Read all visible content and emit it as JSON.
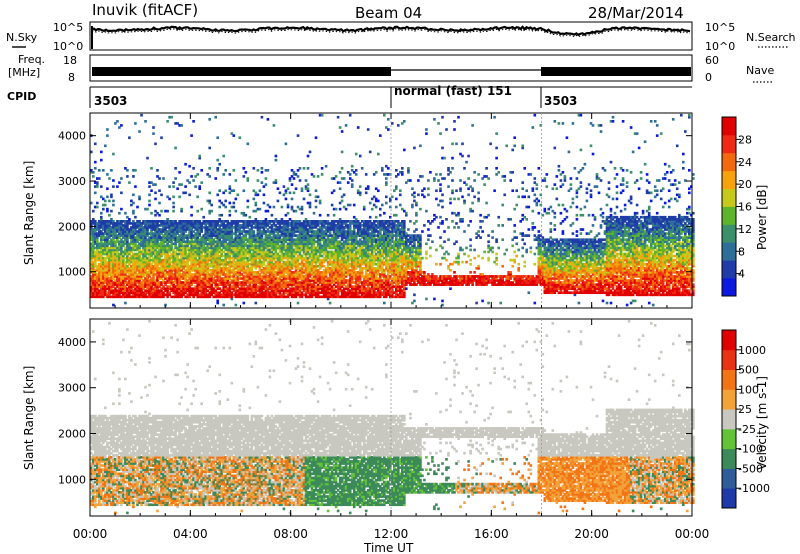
{
  "header": {
    "title": "Inuvik (fitACF)",
    "beam": "Beam 04",
    "date": "28/Mar/2014"
  },
  "top_panels": {
    "nsky_label": "N.Sky",
    "nsky_ticks": [
      "10^5",
      "10^0"
    ],
    "nsearch_label": "N.Search",
    "freq_label_1": "Freq.",
    "freq_label_2": "[MHz]",
    "freq_ticks": [
      "18",
      "8"
    ],
    "nave_label": "Nave",
    "nave_ticks": [
      "60",
      "0"
    ],
    "cpid_label": "CPID",
    "cpid_segments": [
      {
        "text": "3503",
        "start_hour": 0
      },
      {
        "text": "normal (fast) 151",
        "start_hour": 12
      },
      {
        "text": "3503",
        "start_hour": 18
      }
    ]
  },
  "chart_data": [
    {
      "type": "heatmap",
      "name": "power",
      "ylabel": "Slant Range [km]",
      "xlim": [
        0,
        24
      ],
      "ylim": [
        200,
        4500
      ],
      "yticks": [
        1000,
        2000,
        3000,
        4000
      ],
      "colorbar": {
        "label": "Power [dB]",
        "ticks": [
          "28",
          "24",
          "20",
          "16",
          "12",
          "8",
          "4"
        ],
        "colors": [
          "#0b19e0",
          "#1f3ca8",
          "#2e6f9a",
          "#3b8f6a",
          "#5eb32c",
          "#c6c81a",
          "#f6a20d",
          "#f26a0d",
          "#ee2a14",
          "#e00000"
        ]
      }
    },
    {
      "type": "heatmap",
      "name": "velocity",
      "ylabel": "Slant Range [km]",
      "xlabel": "Time UT",
      "xlim": [
        0,
        24
      ],
      "ylim": [
        200,
        4500
      ],
      "yticks": [
        1000,
        2000,
        3000,
        4000
      ],
      "xticks": [
        "00:00",
        "04:00",
        "08:00",
        "12:00",
        "16:00",
        "20:00",
        "00:00"
      ],
      "colorbar": {
        "label": "Velocity [m s-1]",
        "ticks": [
          "1000",
          "500",
          "100",
          "25",
          "-25",
          "-100",
          "-500",
          "-1000"
        ],
        "colors": [
          "#1d3aa8",
          "#2f5d9a",
          "#3c8a5a",
          "#63c238",
          "#c8c8c0",
          "#f3a23a",
          "#f27414",
          "#e83212",
          "#e00000"
        ]
      }
    }
  ]
}
